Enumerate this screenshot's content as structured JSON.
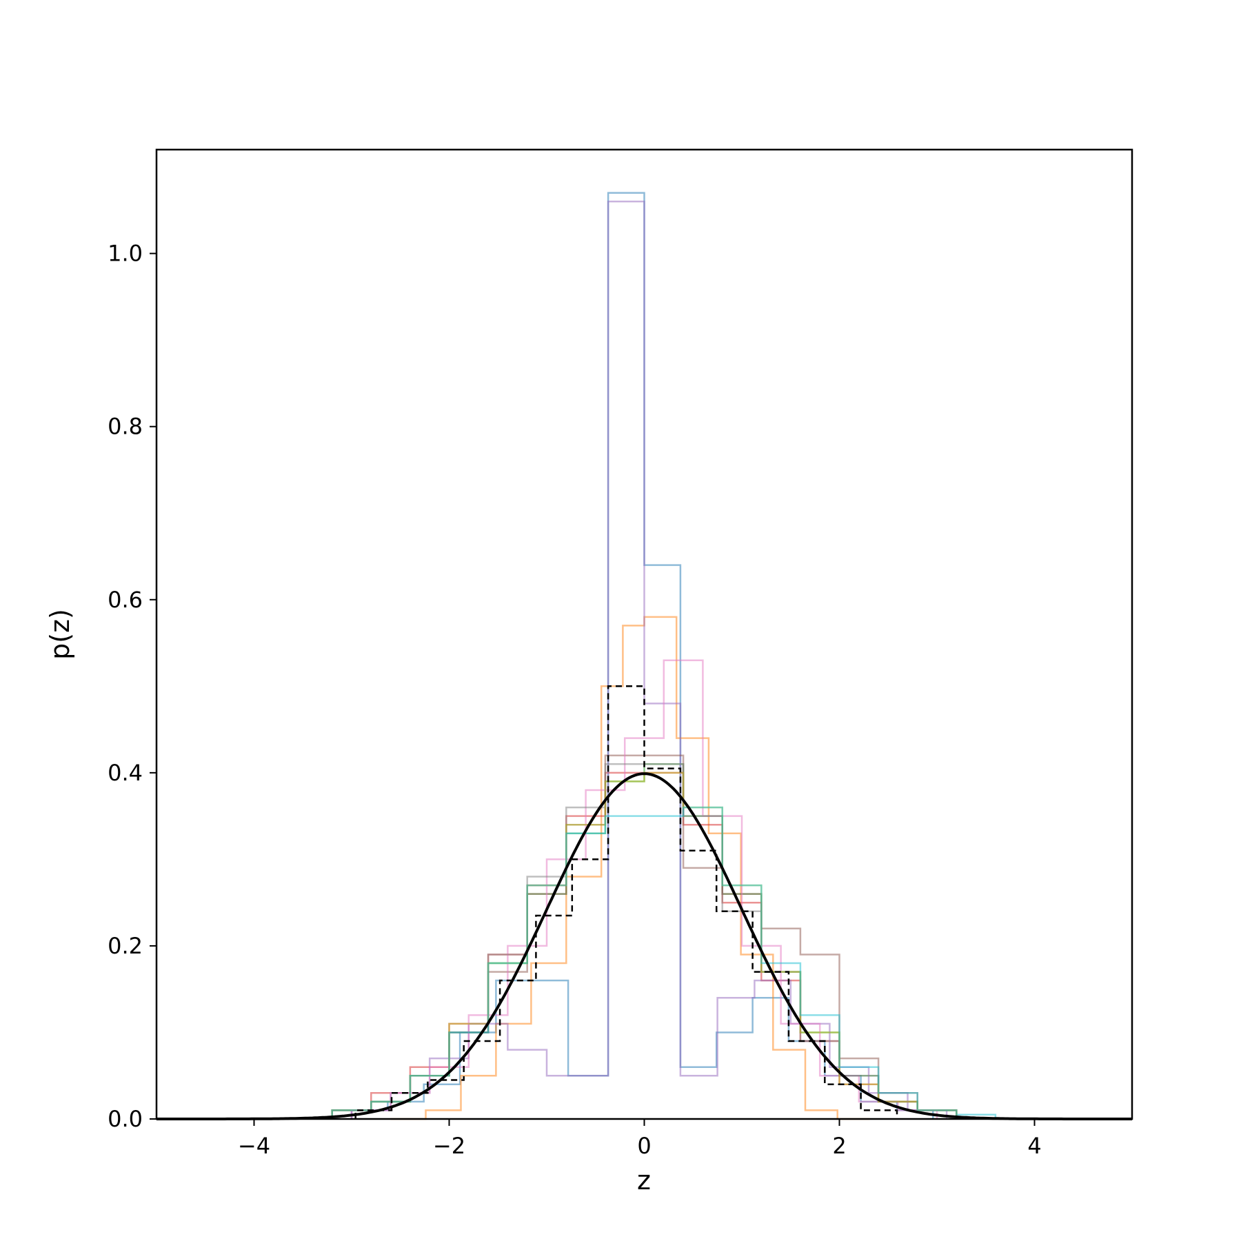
{
  "chart_data": {
    "type": "line",
    "title": "",
    "xlabel": "z",
    "ylabel": "p(z)",
    "xlim": [
      -5,
      5
    ],
    "ylim": [
      0,
      1.12
    ],
    "grid": false,
    "legend": "none",
    "x_ticks": [
      {
        "value": -4,
        "label": "−4"
      },
      {
        "value": -2,
        "label": "−2"
      },
      {
        "value": 0,
        "label": "0"
      },
      {
        "value": 2,
        "label": "2"
      },
      {
        "value": 4,
        "label": "4"
      }
    ],
    "y_ticks": [
      {
        "value": 0.0,
        "label": "0.0"
      },
      {
        "value": 0.2,
        "label": "0.2"
      },
      {
        "value": 0.4,
        "label": "0.4"
      },
      {
        "value": 0.6,
        "label": "0.6"
      },
      {
        "value": 0.8,
        "label": "0.8"
      },
      {
        "value": 1.0,
        "label": "1.0"
      }
    ],
    "density_curve": {
      "color": "#000000",
      "mean": 0,
      "std": 1
    },
    "histograms": [
      {
        "color": "#1f77b4",
        "style": "solid",
        "edges": [
          -3.0,
          -2.63,
          -2.26,
          -1.89,
          -1.52,
          -1.15,
          -0.78,
          -0.37,
          0.0,
          0.37,
          0.74,
          1.11,
          1.48,
          1.85,
          2.22,
          2.59,
          2.96
        ],
        "values": [
          0.01,
          0.02,
          0.04,
          0.1,
          0.16,
          0.16,
          0.05,
          1.07,
          0.64,
          0.06,
          0.1,
          0.14,
          0.09,
          0.05,
          0.02,
          0.01
        ]
      },
      {
        "color": "#ff7f0e",
        "style": "solid",
        "edges": [
          -2.6,
          -2.24,
          -1.88,
          -1.52,
          -1.16,
          -0.8,
          -0.44,
          -0.22,
          0.0,
          0.33,
          0.66,
          0.99,
          1.32,
          1.65,
          1.98,
          2.31
        ],
        "values": [
          0.0,
          0.01,
          0.05,
          0.11,
          0.18,
          0.28,
          0.5,
          0.57,
          0.58,
          0.44,
          0.33,
          0.19,
          0.08,
          0.01,
          0.0
        ]
      },
      {
        "color": "#2ca02c",
        "style": "solid",
        "edges": [
          -3.2,
          -2.8,
          -2.4,
          -2.0,
          -1.6,
          -1.2,
          -0.8,
          -0.4,
          0.0,
          0.4,
          0.8,
          1.2,
          1.6,
          2.0,
          2.4,
          2.8,
          3.2
        ],
        "values": [
          0.01,
          0.02,
          0.05,
          0.1,
          0.18,
          0.26,
          0.33,
          0.39,
          0.41,
          0.35,
          0.26,
          0.17,
          0.1,
          0.05,
          0.02,
          0.01
        ]
      },
      {
        "color": "#d62728",
        "style": "solid",
        "edges": [
          -3.2,
          -2.8,
          -2.4,
          -2.0,
          -1.6,
          -1.2,
          -0.8,
          -0.4,
          0.0,
          0.4,
          0.8,
          1.2,
          1.6,
          2.0,
          2.4,
          2.8,
          3.2
        ],
        "values": [
          0.01,
          0.03,
          0.06,
          0.11,
          0.19,
          0.27,
          0.35,
          0.4,
          0.4,
          0.34,
          0.25,
          0.16,
          0.09,
          0.04,
          0.02,
          0.01
        ]
      },
      {
        "color": "#9467bd",
        "style": "solid",
        "edges": [
          -3.0,
          -2.6,
          -2.2,
          -1.8,
          -1.4,
          -1.0,
          -0.37,
          0.0,
          0.37,
          0.75,
          1.13,
          1.5,
          1.9,
          2.3,
          2.7,
          3.1
        ],
        "values": [
          0.01,
          0.03,
          0.07,
          0.11,
          0.08,
          0.05,
          1.06,
          0.48,
          0.05,
          0.14,
          0.16,
          0.11,
          0.06,
          0.03,
          0.01
        ]
      },
      {
        "color": "#8c564b",
        "style": "solid",
        "edges": [
          -3.2,
          -2.8,
          -2.4,
          -2.0,
          -1.6,
          -1.2,
          -0.8,
          -0.4,
          0.0,
          0.4,
          0.8,
          1.2,
          1.6,
          2.0,
          2.4,
          2.8,
          3.2
        ],
        "values": [
          0.01,
          0.02,
          0.05,
          0.1,
          0.17,
          0.26,
          0.34,
          0.42,
          0.42,
          0.29,
          0.26,
          0.22,
          0.19,
          0.07,
          0.03,
          0.01
        ]
      },
      {
        "color": "#e377c2",
        "style": "solid",
        "edges": [
          -3.0,
          -2.6,
          -2.2,
          -1.8,
          -1.4,
          -1.0,
          -0.6,
          -0.2,
          0.2,
          0.6,
          1.0,
          1.4,
          1.8,
          2.2,
          2.6,
          3.0
        ],
        "values": [
          0.01,
          0.03,
          0.06,
          0.12,
          0.2,
          0.3,
          0.38,
          0.44,
          0.53,
          0.35,
          0.2,
          0.11,
          0.05,
          0.02,
          0.01
        ]
      },
      {
        "color": "#7f7f7f",
        "style": "solid",
        "edges": [
          -3.2,
          -2.8,
          -2.4,
          -2.0,
          -1.6,
          -1.2,
          -0.8,
          -0.4,
          0.0,
          0.4,
          0.8,
          1.2,
          1.6,
          2.0,
          2.4,
          2.8,
          3.2
        ],
        "values": [
          0.01,
          0.02,
          0.05,
          0.1,
          0.19,
          0.28,
          0.36,
          0.41,
          0.41,
          0.35,
          0.24,
          0.17,
          0.09,
          0.05,
          0.02,
          0.01
        ]
      },
      {
        "color": "#bcbd22",
        "style": "solid",
        "edges": [
          -3.2,
          -2.8,
          -2.4,
          -2.0,
          -1.6,
          -1.2,
          -0.8,
          -0.4,
          0.0,
          0.4,
          0.8,
          1.2,
          1.6,
          2.0,
          2.4,
          2.8,
          3.2
        ],
        "values": [
          0.01,
          0.02,
          0.05,
          0.11,
          0.18,
          0.27,
          0.34,
          0.39,
          0.4,
          0.36,
          0.27,
          0.17,
          0.1,
          0.04,
          0.02,
          0.01
        ]
      },
      {
        "color": "#17becf",
        "style": "solid",
        "edges": [
          -3.2,
          -2.8,
          -2.4,
          -2.0,
          -1.6,
          -1.2,
          -0.8,
          -0.4,
          0.0,
          0.4,
          0.8,
          1.2,
          1.6,
          2.0,
          2.4,
          2.8,
          3.2,
          3.6
        ],
        "values": [
          0.01,
          0.02,
          0.05,
          0.1,
          0.18,
          0.27,
          0.33,
          0.35,
          0.35,
          0.36,
          0.27,
          0.18,
          0.12,
          0.06,
          0.03,
          0.01,
          0.005
        ]
      },
      {
        "color": "#000000",
        "style": "dashed",
        "edges": [
          -2.96,
          -2.59,
          -2.22,
          -1.85,
          -1.48,
          -1.11,
          -0.74,
          -0.37,
          0.0,
          0.37,
          0.74,
          1.11,
          1.48,
          1.85,
          2.22,
          2.59
        ],
        "values": [
          0.01,
          0.03,
          0.045,
          0.09,
          0.16,
          0.235,
          0.3,
          0.5,
          0.405,
          0.31,
          0.24,
          0.17,
          0.09,
          0.04,
          0.01
        ]
      }
    ]
  }
}
